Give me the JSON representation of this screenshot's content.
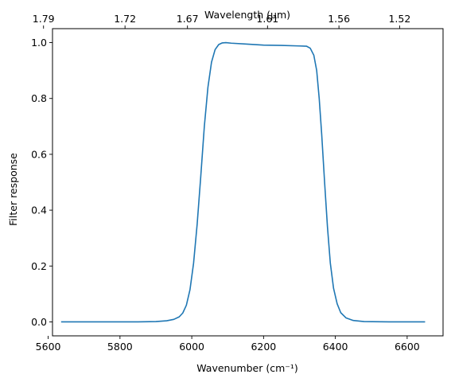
{
  "chart_data": {
    "type": "line",
    "xlabel": "Wavenumber (cm⁻¹)",
    "ylabel": "Filter response",
    "top_xlabel": "Wavelength (μm)",
    "xlim": [
      5612,
      6700
    ],
    "ylim": [
      -0.05,
      1.05
    ],
    "grid": false,
    "x_ticks": [
      5600,
      5800,
      6000,
      6200,
      6400,
      6600
    ],
    "x_tick_labels": [
      "5600",
      "5800",
      "6000",
      "6200",
      "6400",
      "6600"
    ],
    "y_ticks": [
      0.0,
      0.2,
      0.4,
      0.6,
      0.8,
      1.0
    ],
    "y_tick_labels": [
      "0.0",
      "0.2",
      "0.4",
      "0.6",
      "0.8",
      "1.0"
    ],
    "top_ticks": [
      {
        "wavenumber": 5587,
        "label": "1.79"
      },
      {
        "wavenumber": 5814,
        "label": "1.72"
      },
      {
        "wavenumber": 5988,
        "label": "1.67"
      },
      {
        "wavenumber": 6211,
        "label": "1.61"
      },
      {
        "wavenumber": 6410,
        "label": "1.56"
      },
      {
        "wavenumber": 6579,
        "label": "1.52"
      }
    ],
    "series": [
      {
        "color": "#1f77b4",
        "x": [
          5636,
          5700,
          5800,
          5850,
          5900,
          5930,
          5950,
          5965,
          5975,
          5985,
          5995,
          6005,
          6015,
          6025,
          6035,
          6045,
          6055,
          6065,
          6075,
          6085,
          6095,
          6110,
          6150,
          6200,
          6250,
          6300,
          6320,
          6330,
          6340,
          6348,
          6355,
          6362,
          6370,
          6378,
          6386,
          6395,
          6405,
          6415,
          6430,
          6450,
          6480,
          6550,
          6650
        ],
        "y": [
          0.0,
          0.0,
          0.0,
          0.0,
          0.001,
          0.004,
          0.009,
          0.018,
          0.032,
          0.06,
          0.115,
          0.21,
          0.35,
          0.52,
          0.7,
          0.84,
          0.93,
          0.975,
          0.993,
          0.999,
          1.0,
          0.998,
          0.995,
          0.991,
          0.99,
          0.988,
          0.987,
          0.98,
          0.955,
          0.9,
          0.8,
          0.67,
          0.5,
          0.34,
          0.21,
          0.12,
          0.065,
          0.033,
          0.014,
          0.005,
          0.001,
          0.0,
          0.0
        ]
      }
    ]
  }
}
